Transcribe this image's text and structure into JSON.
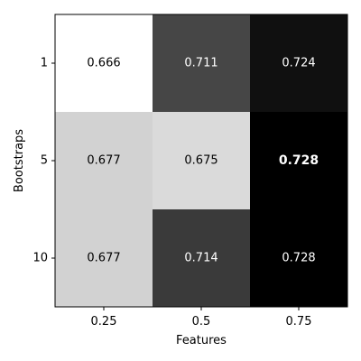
{
  "chart_data": {
    "type": "heatmap",
    "xlabel": "Features",
    "ylabel": "Bootstraps",
    "x_categories": [
      "0.25",
      "0.5",
      "0.75"
    ],
    "y_categories": [
      "1",
      "5",
      "10"
    ],
    "values": [
      [
        0.666,
        0.711,
        0.724
      ],
      [
        0.677,
        0.675,
        0.728
      ],
      [
        0.677,
        0.714,
        0.728
      ]
    ],
    "labels": [
      [
        "0.666",
        "0.711",
        "0.724"
      ],
      [
        "0.677",
        "0.675",
        "0.728"
      ],
      [
        "0.677",
        "0.714",
        "0.728"
      ]
    ],
    "highlight_cell": {
      "row": 1,
      "col": 2
    },
    "colormap": "gray_r",
    "color_range": [
      0.666,
      0.728
    ],
    "colors": {
      "light_text": "#ffffff",
      "dark_text": "#000000",
      "frame": "#000000"
    }
  }
}
